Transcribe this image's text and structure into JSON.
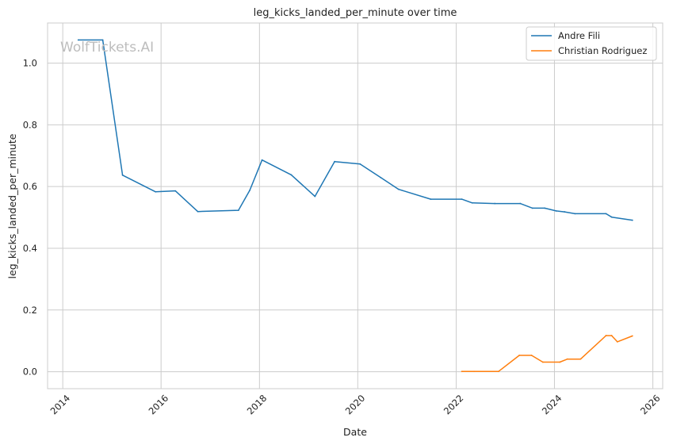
{
  "chart_data": {
    "type": "line",
    "title": "leg_kicks_landed_per_minute over time",
    "xlabel": "Date",
    "ylabel": "leg_kicks_landed_per_minute",
    "watermark": "WolfTickets.AI",
    "x_ticks": [
      "2014",
      "2016",
      "2018",
      "2020",
      "2022",
      "2024",
      "2026"
    ],
    "y_ticks": [
      "0.0",
      "0.2",
      "0.4",
      "0.6",
      "0.8",
      "1.0"
    ],
    "xlim": [
      "2013-09-10",
      "2026-03-15"
    ],
    "ylim": [
      -0.055,
      1.13
    ],
    "grid": true,
    "legend_position": "top-right",
    "series": [
      {
        "name": "Andre Fili",
        "color": "#1f77b4",
        "points": [
          [
            "2014-04-26",
            1.075
          ],
          [
            "2014-10-25",
            1.075
          ],
          [
            "2015-03-21",
            0.637
          ],
          [
            "2015-11-21",
            0.583
          ],
          [
            "2016-04-16",
            0.586
          ],
          [
            "2016-09-30",
            0.519
          ],
          [
            "2017-07-29",
            0.523
          ],
          [
            "2017-10-21",
            0.588
          ],
          [
            "2018-01-20",
            0.686
          ],
          [
            "2018-08-25",
            0.638
          ],
          [
            "2019-02-17",
            0.568
          ],
          [
            "2019-07-13",
            0.681
          ],
          [
            "2020-01-18",
            0.673
          ],
          [
            "2020-06-20",
            0.629
          ],
          [
            "2020-10-31",
            0.591
          ],
          [
            "2021-06-26",
            0.559
          ],
          [
            "2022-02-12",
            0.559
          ],
          [
            "2022-04-30",
            0.547
          ],
          [
            "2022-10-15",
            0.545
          ],
          [
            "2023-04-22",
            0.545
          ],
          [
            "2023-07-22",
            0.53
          ],
          [
            "2023-10-21",
            0.53
          ],
          [
            "2024-01-13",
            0.521
          ],
          [
            "2024-03-16",
            0.518
          ],
          [
            "2024-06-01",
            0.512
          ],
          [
            "2025-01-18",
            0.512
          ],
          [
            "2025-03-01",
            0.501
          ],
          [
            "2025-08-02",
            0.491
          ]
        ]
      },
      {
        "name": "Christian Rodriguez",
        "color": "#ff7f0e",
        "points": [
          [
            "2022-02-12",
            0.001
          ],
          [
            "2022-05-14",
            0.001
          ],
          [
            "2022-11-12",
            0.001
          ],
          [
            "2023-04-15",
            0.053
          ],
          [
            "2023-07-15",
            0.053
          ],
          [
            "2023-10-07",
            0.031
          ],
          [
            "2024-02-10",
            0.031
          ],
          [
            "2024-04-06",
            0.041
          ],
          [
            "2024-07-13",
            0.041
          ],
          [
            "2025-01-18",
            0.117
          ],
          [
            "2025-03-01",
            0.117
          ],
          [
            "2025-04-12",
            0.097
          ],
          [
            "2025-08-02",
            0.116
          ]
        ]
      }
    ]
  }
}
